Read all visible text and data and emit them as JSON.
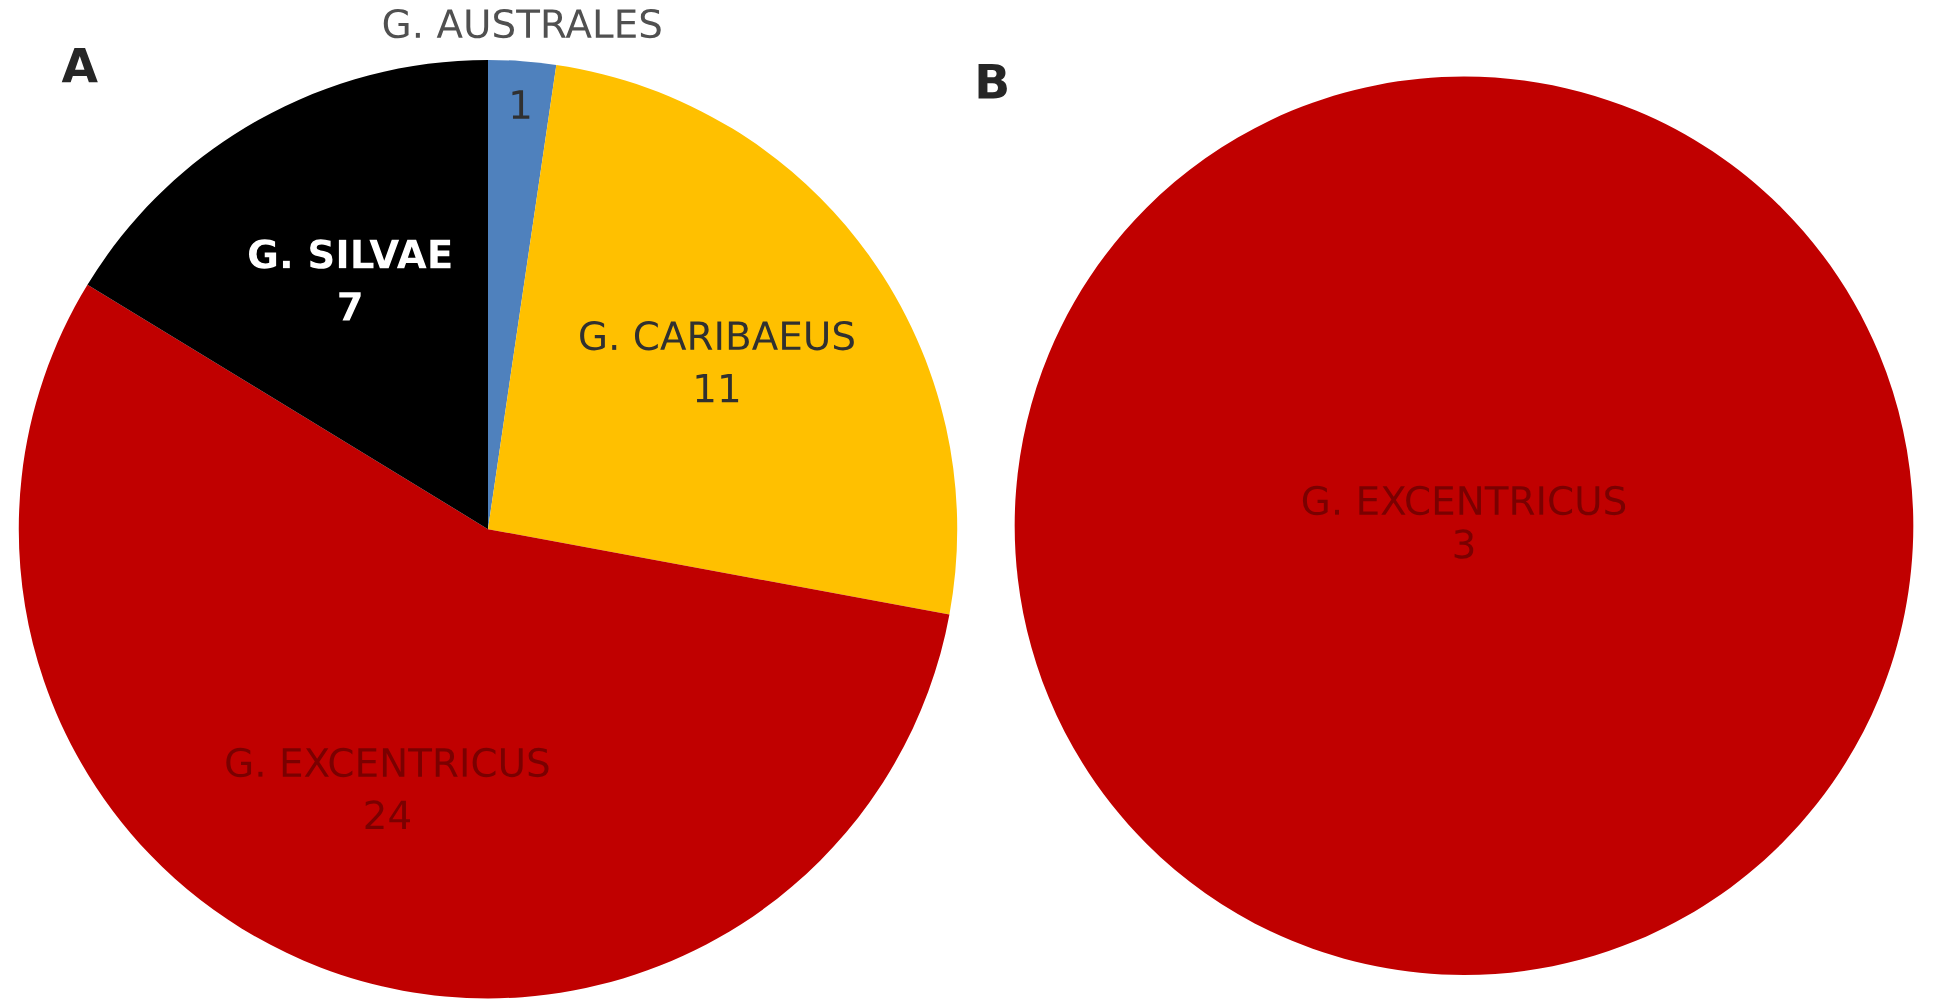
{
  "chart_data": [
    {
      "type": "pie",
      "title": "A",
      "categories": [
        "G. AUSTRALES",
        "G. CARIBAEUS",
        "G. EXCENTRICUS",
        "G. SILVAE"
      ],
      "values": [
        1,
        11,
        24,
        7
      ],
      "colors": [
        "#4f81bd",
        "#ffc000",
        "#c00000",
        "#000000"
      ],
      "data_labels": true
    },
    {
      "type": "pie",
      "title": "B",
      "categories": [
        "G. EXCENTRICUS"
      ],
      "values": [
        3
      ],
      "colors": [
        "#c00000"
      ],
      "data_labels": true
    }
  ]
}
